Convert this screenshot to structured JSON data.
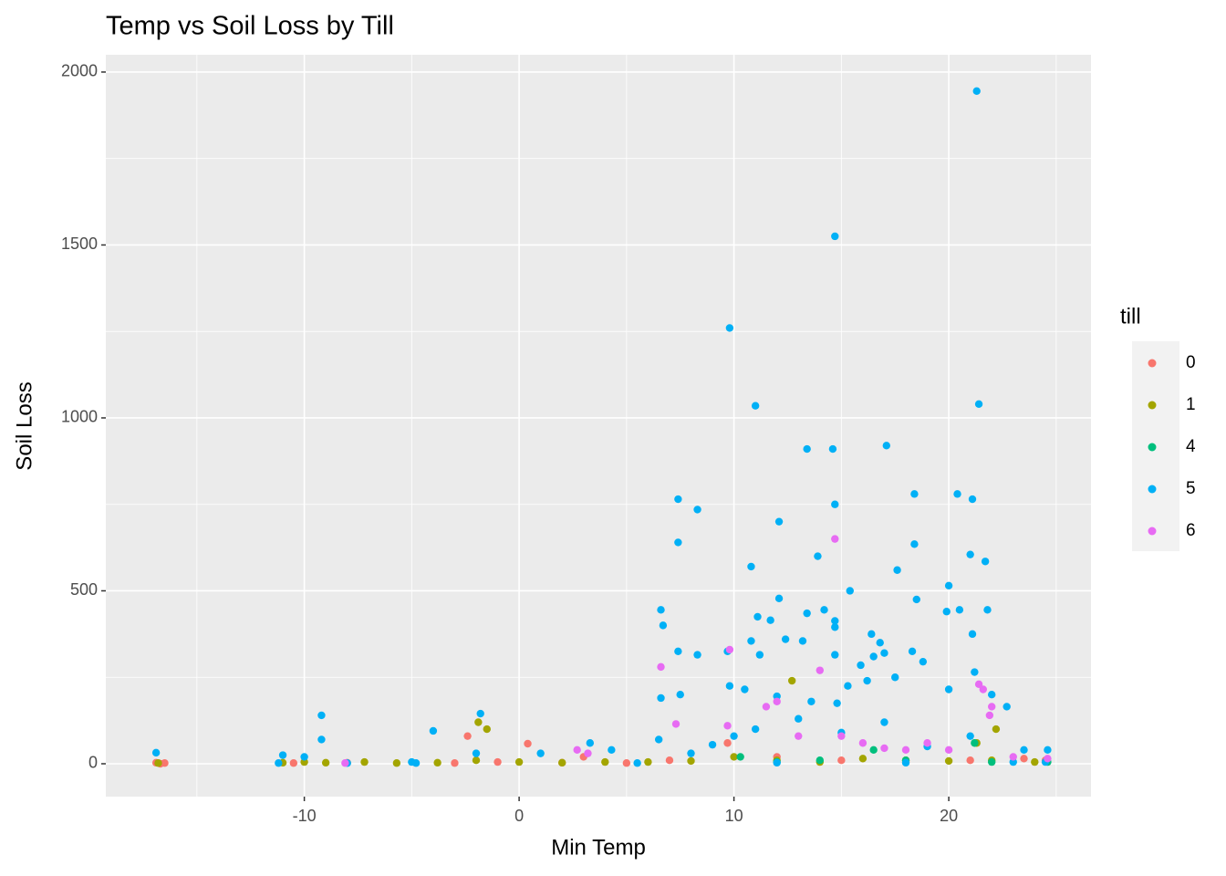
{
  "chart_data": {
    "type": "scatter",
    "title": "Temp vs Soil Loss by Till",
    "x_label": "Min Temp",
    "y_label": "Soil Loss",
    "legend_title": "till",
    "xlim": [
      -19.24,
      26.62
    ],
    "ylim": [
      -95,
      2050
    ],
    "xticks": [
      -10,
      0,
      10,
      20
    ],
    "yticks": [
      0,
      500,
      1000,
      1500,
      2000
    ],
    "grid": true,
    "legend_position": "right",
    "series": [
      {
        "name": "0",
        "color": "#F8766D",
        "x": [
          -16.9,
          -16.7,
          -16.5,
          -2.4,
          0.4,
          -3,
          -1,
          2,
          5,
          9.7,
          12,
          15,
          18,
          21,
          23.5,
          24.5,
          -8,
          -10.5,
          3,
          7
        ],
        "values": [
          3,
          0,
          2,
          80,
          58,
          2,
          5,
          3,
          2,
          60,
          20,
          10,
          5,
          10,
          15,
          10,
          3,
          2,
          20,
          10
        ]
      },
      {
        "name": "1",
        "color": "#A3A500",
        "x": [
          -1.9,
          -1.5,
          12.7,
          21.3,
          22.2,
          -10,
          -9,
          -7.2,
          -5.7,
          -3.8,
          -2,
          0,
          2,
          4,
          6,
          8,
          10,
          12,
          14,
          16,
          18,
          20,
          22,
          24,
          -16.8,
          -11
        ],
        "values": [
          120,
          100,
          240,
          60,
          100,
          5,
          3,
          5,
          2,
          3,
          10,
          5,
          3,
          5,
          5,
          8,
          20,
          10,
          5,
          15,
          10,
          8,
          10,
          5,
          2,
          3
        ]
      },
      {
        "name": "4",
        "color": "#00BF7D",
        "x": [
          21.2,
          16.5,
          10.3,
          14,
          18,
          12,
          22,
          24.6
        ],
        "values": [
          60,
          40,
          20,
          10,
          10,
          5,
          5,
          5
        ]
      },
      {
        "name": "5",
        "color": "#00B0F6",
        "x": [
          21.3,
          14.7,
          9.8,
          11,
          21.4,
          13.4,
          14.6,
          17.1,
          14.7,
          18.4,
          20.4,
          21.1,
          7.4,
          8.3,
          12.1,
          7.4,
          18.4,
          21,
          21.7,
          13.9,
          10.8,
          17.6,
          15.4,
          20,
          19.9,
          20.5,
          21.8,
          6.6,
          12.1,
          13.4,
          14.7,
          14.7,
          14.2,
          6.7,
          18.5,
          11.1,
          11.7,
          21.1,
          16.4,
          7.4,
          8.3,
          9.7,
          10.8,
          11.2,
          12.4,
          13.2,
          14.7,
          16.8,
          18.3,
          16.5,
          17,
          18.8,
          21.2,
          15.9,
          20,
          22,
          22.7,
          9.8,
          10.5,
          6.6,
          7.5,
          12,
          13.6,
          14.8,
          15.3,
          16.2,
          17.5,
          -9.2,
          -1.8,
          -9.2,
          -4,
          -16.9,
          -11,
          -10,
          -5,
          -2,
          1,
          3.3,
          4.3,
          6.5,
          8,
          9,
          10,
          11,
          13,
          15,
          17,
          19,
          21,
          23.5,
          24.6,
          24.5,
          -11.2,
          -8,
          -4.8,
          5.5,
          12,
          18,
          23
        ],
        "values": [
          1945,
          1525,
          1260,
          1035,
          1040,
          910,
          910,
          920,
          750,
          780,
          780,
          765,
          765,
          735,
          700,
          640,
          635,
          605,
          585,
          600,
          570,
          560,
          500,
          515,
          440,
          445,
          445,
          445,
          478,
          435,
          413,
          395,
          445,
          400,
          475,
          425,
          415,
          375,
          375,
          325,
          315,
          325,
          355,
          315,
          360,
          355,
          315,
          350,
          325,
          310,
          320,
          295,
          265,
          285,
          215,
          200,
          165,
          225,
          215,
          190,
          200,
          195,
          180,
          175,
          225,
          240,
          250,
          140,
          145,
          70,
          95,
          32,
          25,
          20,
          5,
          30,
          30,
          60,
          40,
          70,
          30,
          55,
          80,
          100,
          130,
          90,
          120,
          50,
          80,
          40,
          40,
          5,
          2,
          2,
          2,
          2,
          3,
          3,
          5
        ]
      },
      {
        "name": "6",
        "color": "#E76BF3",
        "x": [
          14.7,
          9.8,
          6.6,
          21.4,
          21.6,
          22,
          21.9,
          14,
          12,
          11.5,
          9.7,
          7.3,
          13,
          16,
          19,
          20,
          17,
          -8.1,
          2.7,
          3.2,
          15,
          18,
          23,
          24.6
        ],
        "values": [
          650,
          330,
          280,
          230,
          215,
          165,
          140,
          270,
          180,
          165,
          110,
          115,
          80,
          60,
          60,
          40,
          45,
          2,
          40,
          30,
          80,
          40,
          20,
          15
        ]
      }
    ]
  }
}
